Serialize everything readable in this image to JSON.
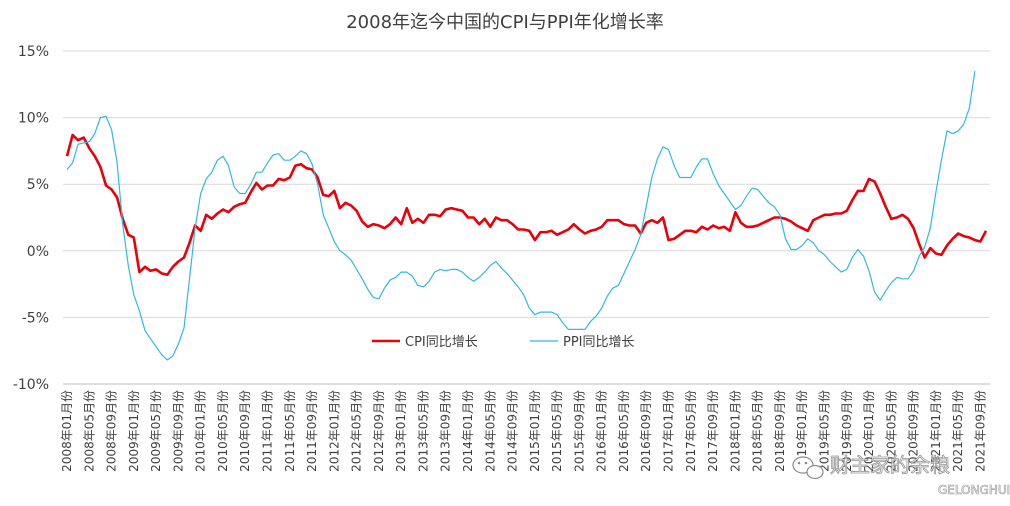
{
  "chart_data": {
    "type": "line",
    "title": "2008年迄今中国的CPI与PPI年化增长率",
    "ylim": [
      -10,
      15
    ],
    "yticks": [
      -10,
      -5,
      0,
      5,
      10,
      15
    ],
    "ytick_labels": [
      "-10%",
      "-5%",
      "0%",
      "5%",
      "10%",
      "15%"
    ],
    "grid": true,
    "legend_position": "center",
    "x_tick_labels": [
      "2008年01月份",
      "2008年05月份",
      "2008年09月份",
      "2009年01月份",
      "2009年05月份",
      "2009年09月份",
      "2010年01月份",
      "2010年05月份",
      "2010年09月份",
      "2011年01月份",
      "2011年05月份",
      "2011年09月份",
      "2012年01月份",
      "2012年05月份",
      "2012年09月份",
      "2013年01月份",
      "2013年05月份",
      "2013年09月份",
      "2014年01月份",
      "2014年05月份",
      "2014年09月份",
      "2015年01月份",
      "2015年05月份",
      "2015年09月份",
      "2016年01月份",
      "2016年05月份",
      "2016年09月份",
      "2017年01月份",
      "2017年05月份",
      "2017年09月份",
      "2018年01月份",
      "2018年05月份",
      "2018年09月份",
      "2019年01月份",
      "2019年05月份",
      "2019年09月份",
      "2020年01月份",
      "2020年05月份",
      "2020年09月份",
      "2021年01月份",
      "2021年05月份",
      "2021年09月份"
    ],
    "x_start": "2008-01",
    "x_end": "2021-10",
    "series": [
      {
        "name": "CPI同比增长",
        "color": "#e8000b",
        "values": [
          7.1,
          8.7,
          8.3,
          8.5,
          7.7,
          7.1,
          6.3,
          4.9,
          4.6,
          4.0,
          2.4,
          1.2,
          1.0,
          -1.6,
          -1.2,
          -1.5,
          -1.4,
          -1.7,
          -1.8,
          -1.2,
          -0.8,
          -0.5,
          0.6,
          1.9,
          1.5,
          2.7,
          2.4,
          2.8,
          3.1,
          2.9,
          3.3,
          3.5,
          3.6,
          4.4,
          5.1,
          4.6,
          4.9,
          4.9,
          5.4,
          5.3,
          5.5,
          6.4,
          6.5,
          6.2,
          6.1,
          5.5,
          4.2,
          4.1,
          4.5,
          3.2,
          3.6,
          3.4,
          3.0,
          2.2,
          1.8,
          2.0,
          1.9,
          1.7,
          2.0,
          2.5,
          2.0,
          3.2,
          2.1,
          2.4,
          2.1,
          2.7,
          2.7,
          2.6,
          3.1,
          3.2,
          3.1,
          3.0,
          2.5,
          2.5,
          2.0,
          2.4,
          1.8,
          2.5,
          2.3,
          2.3,
          2.0,
          1.6,
          1.6,
          1.5,
          0.8,
          1.4,
          1.4,
          1.5,
          1.2,
          1.4,
          1.6,
          2.0,
          1.6,
          1.3,
          1.5,
          1.6,
          1.8,
          2.3,
          2.3,
          2.3,
          2.0,
          1.9,
          1.9,
          1.3,
          2.1,
          2.3,
          2.1,
          2.5,
          0.8,
          0.9,
          1.2,
          1.5,
          1.5,
          1.4,
          1.8,
          1.6,
          1.9,
          1.7,
          1.8,
          1.5,
          2.9,
          2.1,
          1.8,
          1.8,
          1.9,
          2.1,
          2.3,
          2.5,
          2.5,
          2.4,
          2.2,
          1.9,
          1.7,
          1.5,
          2.3,
          2.5,
          2.7,
          2.7,
          2.8,
          2.8,
          3.0,
          3.8,
          4.5,
          4.5,
          5.4,
          5.2,
          4.3,
          3.3,
          2.4,
          2.5,
          2.7,
          2.4,
          1.7,
          0.5,
          -0.5,
          0.2,
          -0.2,
          -0.3,
          0.4,
          0.9,
          1.3,
          1.1,
          1.0,
          0.8,
          0.7,
          1.5
        ]
      },
      {
        "name": "PPI同比增长",
        "color": "#33b8e0",
        "values": [
          6.1,
          6.6,
          8.0,
          8.1,
          8.2,
          8.8,
          10.0,
          10.1,
          9.1,
          6.6,
          2.0,
          -1.1,
          -3.3,
          -4.5,
          -6.0,
          -6.6,
          -7.2,
          -7.8,
          -8.2,
          -7.9,
          -7.0,
          -5.8,
          -2.1,
          1.7,
          4.3,
          5.4,
          5.9,
          6.8,
          7.1,
          6.4,
          4.8,
          4.3,
          4.3,
          5.0,
          5.9,
          5.9,
          6.6,
          7.2,
          7.3,
          6.8,
          6.8,
          7.1,
          7.5,
          7.3,
          6.5,
          5.0,
          2.7,
          1.7,
          0.7,
          0.0,
          -0.3,
          -0.7,
          -1.4,
          -2.1,
          -2.9,
          -3.5,
          -3.6,
          -2.8,
          -2.2,
          -2.0,
          -1.6,
          -1.6,
          -1.9,
          -2.6,
          -2.7,
          -2.3,
          -1.6,
          -1.4,
          -1.5,
          -1.4,
          -1.4,
          -1.6,
          -2.0,
          -2.3,
          -2.0,
          -1.6,
          -1.1,
          -0.8,
          -1.3,
          -1.7,
          -2.2,
          -2.7,
          -3.3,
          -4.3,
          -4.8,
          -4.6,
          -4.6,
          -4.6,
          -4.8,
          -5.4,
          -5.9,
          -5.9,
          -5.9,
          -5.9,
          -5.3,
          -4.9,
          -4.3,
          -3.4,
          -2.8,
          -2.6,
          -1.7,
          -0.8,
          0.1,
          1.2,
          3.3,
          5.5,
          6.9,
          7.8,
          7.6,
          6.4,
          5.5,
          5.5,
          5.5,
          6.3,
          6.9,
          6.9,
          5.8,
          4.9,
          4.3,
          3.7,
          3.1,
          3.4,
          4.1,
          4.7,
          4.6,
          4.1,
          3.6,
          3.3,
          2.7,
          0.9,
          0.1,
          0.1,
          0.4,
          0.9,
          0.6,
          0.0,
          -0.3,
          -0.8,
          -1.2,
          -1.6,
          -1.4,
          -0.5,
          0.1,
          -0.4,
          -1.5,
          -3.1,
          -3.7,
          -3.0,
          -2.4,
          -2.0,
          -2.1,
          -2.1,
          -1.5,
          -0.4,
          0.3,
          1.7,
          4.4,
          6.8,
          9.0,
          8.8,
          9.0,
          9.5,
          10.7,
          13.5
        ]
      }
    ]
  },
  "watermark": {
    "icon": "wechat-icon",
    "text": "财主家的余粮",
    "sub_text": "GELONGHUI"
  }
}
